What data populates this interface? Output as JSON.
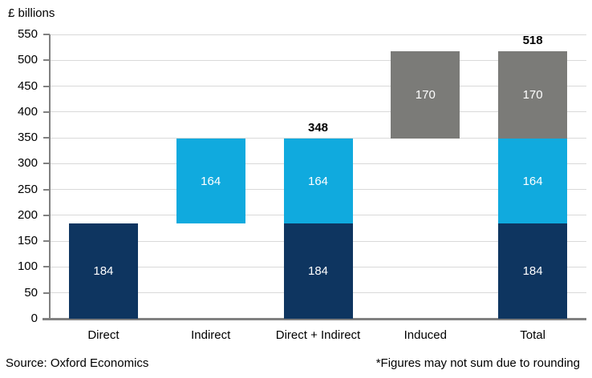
{
  "chart_data": {
    "type": "bar",
    "stacked": true,
    "title": "£ billions",
    "xlabel": "",
    "ylabel": "£ billions",
    "y_axis": {
      "min": 0,
      "max": 550,
      "step": 50
    },
    "grid": true,
    "legend": "none",
    "categories": [
      "Direct",
      "Indirect",
      "Direct + Indirect",
      "Induced",
      "Total"
    ],
    "palette": {
      "navy": "#0e3560",
      "cyan": "#10aade",
      "gray": "#7b7b78"
    },
    "bars": [
      {
        "category": "Direct",
        "segments": [
          {
            "from": 0,
            "to": 184,
            "value": "184",
            "color": "navy"
          }
        ]
      },
      {
        "category": "Indirect",
        "segments": [
          {
            "from": 184,
            "to": 348,
            "value": "164",
            "color": "cyan"
          }
        ]
      },
      {
        "category": "Direct + Indirect",
        "total_label": "348",
        "segments": [
          {
            "from": 0,
            "to": 184,
            "value": "184",
            "color": "navy"
          },
          {
            "from": 184,
            "to": 348,
            "value": "164",
            "color": "cyan"
          }
        ]
      },
      {
        "category": "Induced",
        "segments": [
          {
            "from": 348,
            "to": 518,
            "value": "170",
            "color": "gray"
          }
        ]
      },
      {
        "category": "Total",
        "total_label": "518",
        "segments": [
          {
            "from": 0,
            "to": 184,
            "value": "184",
            "color": "navy"
          },
          {
            "from": 184,
            "to": 348,
            "value": "164",
            "color": "cyan"
          },
          {
            "from": 348,
            "to": 518,
            "value": "170",
            "color": "gray"
          }
        ]
      }
    ]
  },
  "colors": {
    "gridline": "#d9d9d9",
    "axis": "#808080",
    "bar_label_text": "#ffffff",
    "text": "#000000"
  },
  "footer": {
    "source": "Source: Oxford Economics",
    "footnote": "*Figures may not sum due to rounding"
  }
}
